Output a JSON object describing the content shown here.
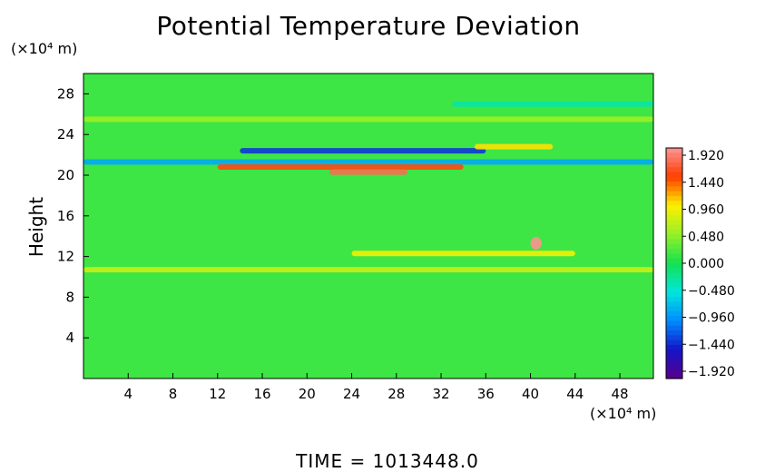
{
  "chart_data": {
    "type": "heatmap",
    "title": "Potential Temperature Deviation",
    "ylabel": "Height",
    "xunit": "(×10⁴ m)",
    "yunit": "(×10⁴ m)",
    "xlim": [
      0,
      51
    ],
    "ylim": [
      0,
      30
    ],
    "x_ticks": [
      "4",
      "8",
      "12",
      "16",
      "20",
      "24",
      "28",
      "32",
      "36",
      "40",
      "44",
      "48"
    ],
    "y_ticks": [
      "4",
      "8",
      "12",
      "16",
      "20",
      "24",
      "28"
    ],
    "colorbar": {
      "range": [
        -1.92,
        1.92
      ],
      "labels": [
        "1.920",
        "1.440",
        "0.960",
        "0.480",
        "0.000",
        "−0.480",
        "−0.960",
        "−1.440",
        "−1.920"
      ]
    },
    "background_value": 0.15,
    "features": [
      {
        "x0": 0,
        "x1": 51,
        "y": 21.3,
        "value": -0.8
      },
      {
        "x0": 12,
        "x1": 34,
        "y": 20.8,
        "value": 1.5
      },
      {
        "x0": 14,
        "x1": 36,
        "y": 22.4,
        "value": -1.3
      },
      {
        "x0": 22,
        "x1": 29,
        "y": 20.3,
        "value": 1.7
      },
      {
        "x0": 35,
        "x1": 42,
        "y": 22.8,
        "value": 1.0
      },
      {
        "x0": 0,
        "x1": 51,
        "y": 10.7,
        "value": 0.7
      },
      {
        "x0": 24,
        "x1": 44,
        "y": 12.3,
        "value": 0.9
      },
      {
        "x0": 0,
        "x1": 51,
        "y": 25.5,
        "value": 0.5
      },
      {
        "x0": 33,
        "x1": 51,
        "y": 27.0,
        "value": -0.3
      },
      {
        "x0": 40,
        "x1": 41,
        "y": 13.3,
        "value": 1.9
      }
    ]
  },
  "footer": {
    "time_text": "TIME  =  1013448.0"
  }
}
